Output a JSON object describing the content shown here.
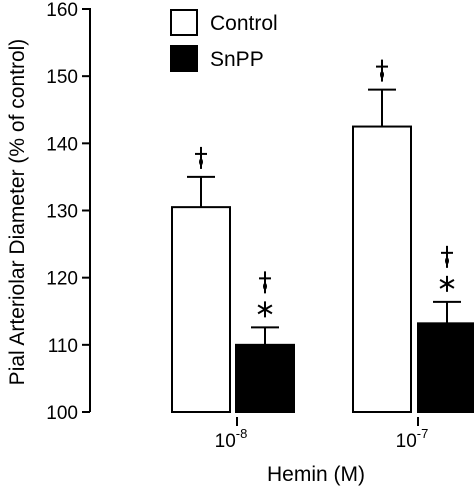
{
  "chart_data": {
    "type": "bar",
    "xlabel": "Hemin  (M)",
    "ylabel": "Pial Arteriolar Diameter (% of control)",
    "ylim": [
      100,
      160
    ],
    "yticks": [
      "100",
      "110",
      "120",
      "130",
      "140",
      "150",
      "160"
    ],
    "categories": [
      {
        "base": "10",
        "exp": "-8"
      },
      {
        "base": "10",
        "exp": "-7"
      }
    ],
    "series": [
      {
        "name": "Control",
        "color": "#ffffff",
        "values": [
          130.5,
          142.5
        ],
        "errors": [
          4.5,
          5.5
        ],
        "marks": [
          "†",
          "†"
        ]
      },
      {
        "name": "SnPP",
        "color": "#000000",
        "values": [
          110.0,
          113.2
        ],
        "errors": [
          2.6,
          3.2
        ],
        "marks": [
          "†*",
          "†*"
        ]
      }
    ],
    "legend_position": "top-left",
    "grid": false
  }
}
